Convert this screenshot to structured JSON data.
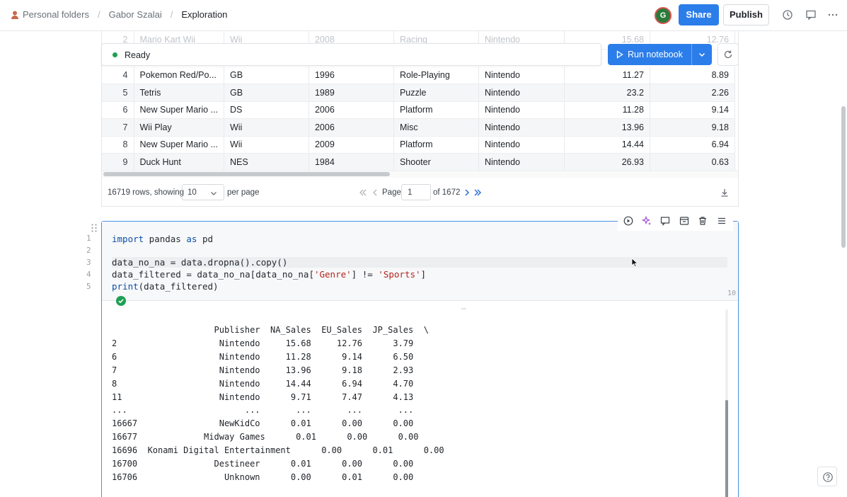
{
  "breadcrumb": {
    "root": "Personal folders",
    "user": "Gabor Szalai",
    "current": "Exploration",
    "sep": "/"
  },
  "header": {
    "avatar_initial": "G",
    "share_label": "Share",
    "publish_label": "Publish"
  },
  "toolbar": {
    "status_text": "Ready",
    "run_label": "Run notebook"
  },
  "table": {
    "ghost_row": [
      "2",
      "Mario Kart Wii",
      "Wii",
      "2008",
      "Racing",
      "Nintendo",
      "15.68",
      "12.76"
    ],
    "rows": [
      [
        "4",
        "Pokemon Red/Po...",
        "GB",
        "1996",
        "Role-Playing",
        "Nintendo",
        "11.27",
        "8.89"
      ],
      [
        "5",
        "Tetris",
        "GB",
        "1989",
        "Puzzle",
        "Nintendo",
        "23.2",
        "2.26"
      ],
      [
        "6",
        "New Super Mario ...",
        "DS",
        "2006",
        "Platform",
        "Nintendo",
        "11.28",
        "9.14"
      ],
      [
        "7",
        "Wii Play",
        "Wii",
        "2006",
        "Misc",
        "Nintendo",
        "13.96",
        "9.18"
      ],
      [
        "8",
        "New Super Mario ...",
        "Wii",
        "2009",
        "Platform",
        "Nintendo",
        "14.44",
        "6.94"
      ],
      [
        "9",
        "Duck Hunt",
        "NES",
        "1984",
        "Shooter",
        "Nintendo",
        "26.93",
        "0.63"
      ]
    ]
  },
  "pager": {
    "rows_text": "16719 rows, showing",
    "page_size": "10",
    "per_page": "per page",
    "page_label": "Page",
    "page_value": "1",
    "of_text": "of 1672"
  },
  "code": {
    "lines": [
      "1",
      "2",
      "3",
      "4",
      "5"
    ],
    "line_count": "10"
  },
  "output": {
    "dash": "--",
    "text": "                    Publisher  NA_Sales  EU_Sales  JP_Sales  \\\n2                    Nintendo     15.68     12.76      3.79\n6                    Nintendo     11.28      9.14      6.50\n7                    Nintendo     13.96      9.18      2.93\n8                    Nintendo     14.44      6.94      4.70\n11                   Nintendo      9.71      7.47      4.13\n...                       ...       ...       ...       ...\n16667                NewKidCo      0.01      0.00      0.00\n16677             Midway Games      0.01      0.00      0.00\n16696  Konami Digital Entertainment      0.00      0.01      0.00\n16700               Destineer      0.01      0.00      0.00\n16706                 Unknown      0.00      0.01      0.00"
  },
  "colors": {
    "accent": "#2b7de9",
    "success": "#1ea052",
    "cell_border": "#4a90e2"
  },
  "icons": [
    "folder-icon",
    "history-icon",
    "comment-icon",
    "more-icon",
    "play-icon",
    "chevron-down-icon",
    "refresh-icon",
    "first-page-icon",
    "prev-page-icon",
    "next-page-icon",
    "last-page-icon",
    "download-icon",
    "run-cell-icon",
    "ai-sparkle-icon",
    "comment-icon",
    "cell-type-icon",
    "delete-icon",
    "menu-icon",
    "drag-handle-icon",
    "check-icon",
    "help-icon"
  ]
}
